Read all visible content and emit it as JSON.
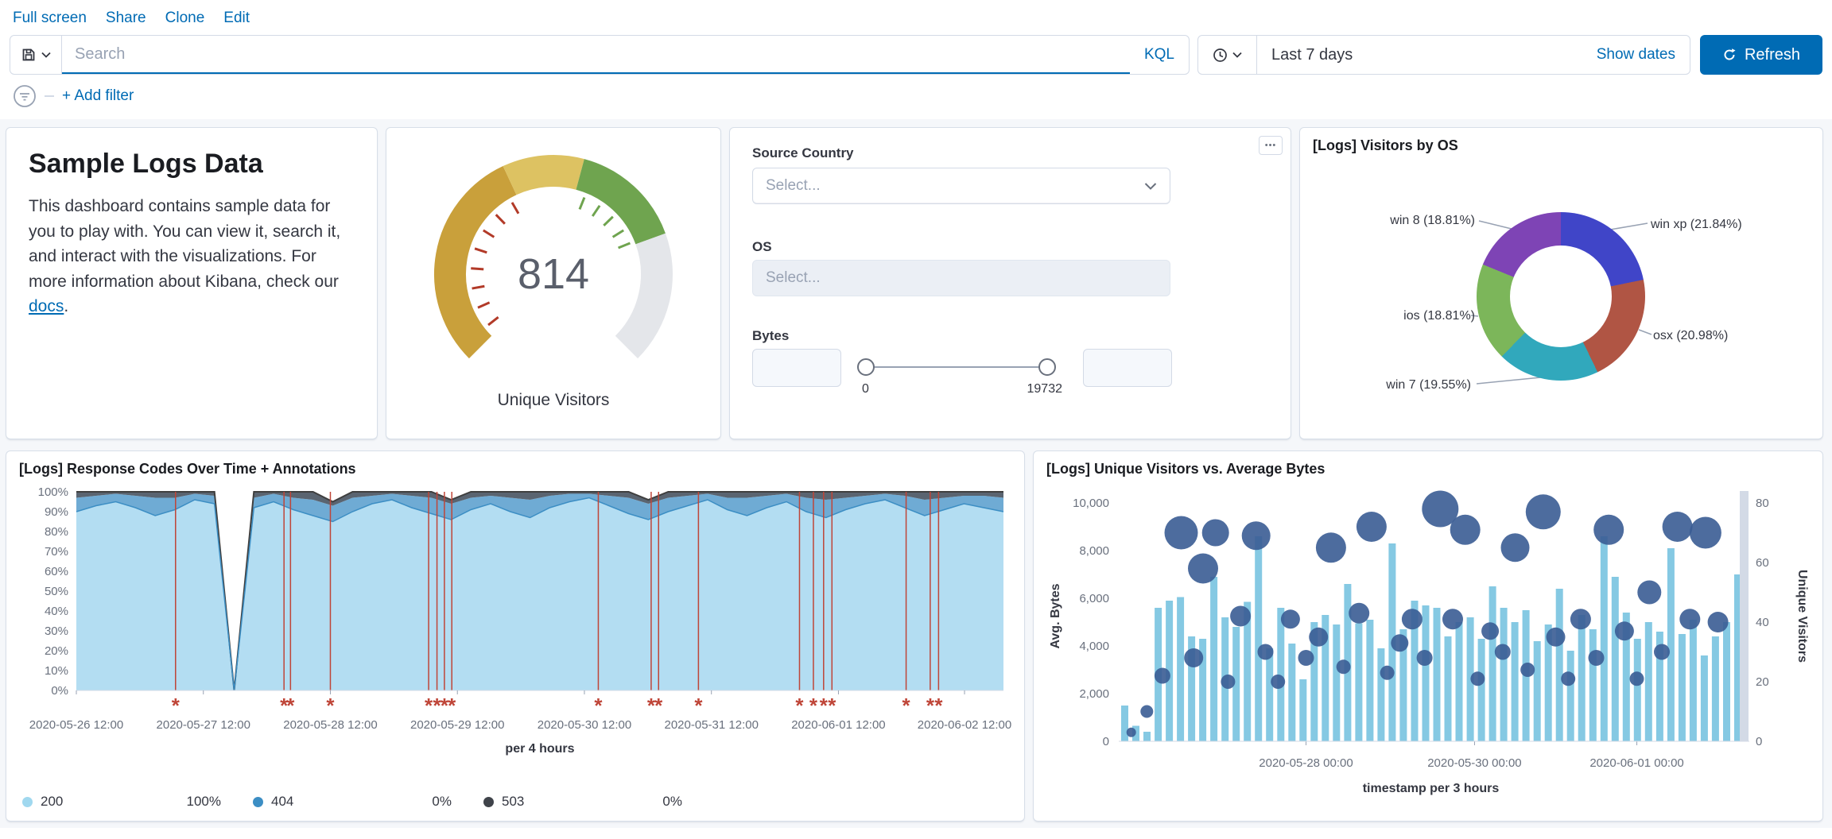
{
  "topnav": {
    "items": [
      "Full screen",
      "Share",
      "Clone",
      "Edit"
    ]
  },
  "query_bar": {
    "search_placeholder": "Search",
    "kql_label": "KQL"
  },
  "time_picker": {
    "range_label": "Last 7 days",
    "show_dates_label": "Show dates",
    "refresh_label": "Refresh"
  },
  "filter_bar": {
    "add_filter_label": "+ Add filter"
  },
  "markdown_panel": {
    "title": "Sample Logs Data",
    "body_1": "This dashboard contains sample data for you to play with. You can view it, search it, and interact with the visualizations. For more information about Kibana, check our ",
    "link_text": "docs",
    "body_2": "."
  },
  "controls_panel": {
    "source_country_label": "Source Country",
    "os_label": "OS",
    "bytes_label": "Bytes",
    "select_placeholder": "Select...",
    "bytes_min": "0",
    "bytes_max": "19732"
  },
  "colors": {
    "accent": "#006BB4",
    "panel_border": "#D3DAE6"
  },
  "chart_data": [
    {
      "id": "gauge",
      "type": "gauge",
      "title": "Unique Visitors",
      "value": "814",
      "segments": [
        {
          "from": -135,
          "to": -25,
          "color": "#C9A03B"
        },
        {
          "from": -25,
          "to": 15,
          "color": "#DDC262"
        },
        {
          "from": 15,
          "to": 70,
          "color": "#6FA44F"
        },
        {
          "from": 70,
          "to": 135,
          "color": "#E4E6EA"
        }
      ],
      "red_ticks": [
        -128,
        -114,
        -100,
        -86,
        -72,
        -58,
        -44,
        -30
      ],
      "green_ticks": [
        22,
        34,
        46,
        58,
        68
      ],
      "tick_colors": {
        "red": "#B23A28",
        "green": "#6FA44F"
      }
    },
    {
      "id": "visitors_by_os",
      "type": "pie",
      "title": "[Logs] Visitors by OS",
      "slices": [
        {
          "name": "win xp",
          "pct": 21.84,
          "color": "#4045C8",
          "label": "win xp (21.84%)"
        },
        {
          "name": "osx",
          "pct": 20.98,
          "color": "#B05544",
          "label": "osx (20.98%)"
        },
        {
          "name": "win 7",
          "pct": 19.55,
          "color": "#31A8BC",
          "label": "win 7 (19.55%)"
        },
        {
          "name": "ios",
          "pct": 18.81,
          "color": "#7CB65A",
          "label": "ios (18.81%)"
        },
        {
          "name": "win 8",
          "pct": 18.81,
          "color": "#7E44B5",
          "label": "win 8 (18.81%)"
        }
      ]
    },
    {
      "id": "response_codes",
      "type": "area",
      "title": "[Logs] Response Codes Over Time + Annotations",
      "xlabel": "per 4 hours",
      "ylim": [
        0,
        100
      ],
      "y_ticks": [
        "0%",
        "10%",
        "20%",
        "30%",
        "40%",
        "50%",
        "60%",
        "70%",
        "80%",
        "90%",
        "100%"
      ],
      "x_ticks": [
        {
          "label": "2020-05-26 12:00",
          "f": 0
        },
        {
          "label": "2020-05-27 12:00",
          "f": 0.137
        },
        {
          "label": "2020-05-28 12:00",
          "f": 0.274
        },
        {
          "label": "2020-05-29 12:00",
          "f": 0.411
        },
        {
          "label": "2020-05-30 12:00",
          "f": 0.548
        },
        {
          "label": "2020-05-31 12:00",
          "f": 0.685
        },
        {
          "label": "2020-06-01 12:00",
          "f": 0.822
        },
        {
          "label": "2020-06-02 12:00",
          "f": 0.958
        }
      ],
      "series": [
        {
          "name": "200",
          "color": "#B3DDF2",
          "values": [
            90,
            93,
            95,
            92,
            88,
            91,
            96,
            94,
            0,
            92,
            95,
            91,
            88,
            85,
            90,
            94,
            96,
            92,
            89,
            86,
            91,
            94,
            90,
            87,
            92,
            95,
            97,
            93,
            89,
            86,
            90,
            93,
            96,
            91,
            88,
            92,
            95,
            90,
            87,
            91,
            94,
            96,
            92,
            88,
            91,
            94,
            92,
            90
          ]
        },
        {
          "name": "404",
          "color": "#6FABD4",
          "values": [
            7,
            5,
            4,
            6,
            9,
            6,
            3,
            4,
            0,
            5,
            4,
            6,
            8,
            8,
            7,
            4,
            3,
            6,
            8,
            8,
            6,
            4,
            7,
            9,
            6,
            4,
            2,
            5,
            8,
            8,
            7,
            5,
            3,
            6,
            9,
            6,
            4,
            7,
            9,
            6,
            4,
            3,
            6,
            8,
            6,
            4,
            6,
            7
          ]
        },
        {
          "name": "503",
          "color": "#5A6470",
          "values": [
            3,
            2,
            1,
            2,
            3,
            3,
            1,
            2,
            0,
            3,
            1,
            3,
            4,
            2,
            3,
            2,
            1,
            2,
            3,
            2,
            3,
            2,
            3,
            4,
            2,
            1,
            1,
            2,
            3,
            2,
            3,
            2,
            1,
            3,
            3,
            2,
            1,
            3,
            4,
            3,
            2,
            1,
            2,
            4,
            3,
            2,
            2,
            3
          ]
        }
      ],
      "outline_color": "#3F3F3F",
      "boundary_color": "#3C8EC4",
      "annotations": {
        "color": "#BF4538",
        "fractions": [
          0.107,
          0.224,
          0.231,
          0.274,
          0.38,
          0.389,
          0.397,
          0.405,
          0.563,
          0.62,
          0.628,
          0.671,
          0.78,
          0.795,
          0.806,
          0.815,
          0.895,
          0.921,
          0.93
        ]
      },
      "legend": [
        {
          "name": "200",
          "dot": "#A0D8EF",
          "value": "100%"
        },
        {
          "name": "404",
          "dot": "#3C8EC4",
          "value": "0%"
        },
        {
          "name": "503",
          "dot": "#3F434A",
          "value": "0%"
        }
      ]
    },
    {
      "id": "visitors_vs_bytes",
      "type": "bar",
      "title": "[Logs] Unique Visitors vs. Average Bytes",
      "xlabel": "timestamp per 3 hours",
      "left_axis": {
        "title": "Avg. Bytes",
        "ticks": [
          "0",
          "2,000",
          "4,000",
          "6,000",
          "8,000",
          "10,000"
        ],
        "tick_step": 2000,
        "max": 10500
      },
      "right_axis": {
        "title": "Unique Visitors",
        "ticks": [
          "0",
          "20",
          "40",
          "60",
          "80"
        ],
        "tick_step": 20,
        "max": 84
      },
      "x_ticks": [
        {
          "label": "2020-05-28 00:00",
          "f": 0.3
        },
        {
          "label": "2020-05-30 00:00",
          "f": 0.57
        },
        {
          "label": "2020-06-01 00:00",
          "f": 0.83
        }
      ],
      "bar_color": "#85C9E3",
      "bars": [
        1500,
        650,
        400,
        5600,
        5900,
        6050,
        4400,
        4300,
        6900,
        5200,
        4800,
        5850,
        8600,
        3900,
        5600,
        4100,
        2600,
        5000,
        5300,
        4900,
        6600,
        4950,
        5100,
        3900,
        8300,
        4700,
        5900,
        5700,
        5600,
        4400,
        5000,
        5200,
        4300,
        6500,
        5600,
        5000,
        5500,
        4200,
        4900,
        6400,
        3800,
        5300,
        4700,
        8600,
        6900,
        5400,
        4300,
        5000,
        4600,
        8100,
        4500,
        5100,
        3600,
        4400,
        5000,
        7000
      ],
      "end_bar": {
        "color": "#D3DAE6"
      },
      "bubble_color": "#3A5C94",
      "bubbles": [
        {
          "x": 0.02,
          "v": 3,
          "r": 6
        },
        {
          "x": 0.045,
          "v": 10,
          "r": 8
        },
        {
          "x": 0.07,
          "v": 22,
          "r": 10
        },
        {
          "x": 0.1,
          "v": 70,
          "r": 21
        },
        {
          "x": 0.12,
          "v": 28,
          "r": 12
        },
        {
          "x": 0.135,
          "v": 58,
          "r": 19
        },
        {
          "x": 0.155,
          "v": 70,
          "r": 17
        },
        {
          "x": 0.175,
          "v": 20,
          "r": 9
        },
        {
          "x": 0.195,
          "v": 42,
          "r": 13
        },
        {
          "x": 0.22,
          "v": 69,
          "r": 18
        },
        {
          "x": 0.235,
          "v": 30,
          "r": 10
        },
        {
          "x": 0.255,
          "v": 20,
          "r": 9
        },
        {
          "x": 0.275,
          "v": 41,
          "r": 12
        },
        {
          "x": 0.3,
          "v": 28,
          "r": 10
        },
        {
          "x": 0.32,
          "v": 35,
          "r": 12
        },
        {
          "x": 0.34,
          "v": 65,
          "r": 19
        },
        {
          "x": 0.36,
          "v": 25,
          "r": 9
        },
        {
          "x": 0.385,
          "v": 43,
          "r": 13
        },
        {
          "x": 0.405,
          "v": 72,
          "r": 19
        },
        {
          "x": 0.43,
          "v": 23,
          "r": 9
        },
        {
          "x": 0.45,
          "v": 33,
          "r": 11
        },
        {
          "x": 0.47,
          "v": 41,
          "r": 13
        },
        {
          "x": 0.49,
          "v": 28,
          "r": 10
        },
        {
          "x": 0.515,
          "v": 78,
          "r": 23
        },
        {
          "x": 0.535,
          "v": 41,
          "r": 13
        },
        {
          "x": 0.555,
          "v": 71,
          "r": 19
        },
        {
          "x": 0.575,
          "v": 21,
          "r": 9
        },
        {
          "x": 0.595,
          "v": 37,
          "r": 11
        },
        {
          "x": 0.615,
          "v": 30,
          "r": 10
        },
        {
          "x": 0.635,
          "v": 65,
          "r": 18
        },
        {
          "x": 0.655,
          "v": 24,
          "r": 9
        },
        {
          "x": 0.68,
          "v": 77,
          "r": 22
        },
        {
          "x": 0.7,
          "v": 35,
          "r": 12
        },
        {
          "x": 0.72,
          "v": 21,
          "r": 9
        },
        {
          "x": 0.74,
          "v": 41,
          "r": 13
        },
        {
          "x": 0.765,
          "v": 28,
          "r": 10
        },
        {
          "x": 0.785,
          "v": 71,
          "r": 19
        },
        {
          "x": 0.81,
          "v": 37,
          "r": 12
        },
        {
          "x": 0.83,
          "v": 21,
          "r": 9
        },
        {
          "x": 0.85,
          "v": 50,
          "r": 15
        },
        {
          "x": 0.87,
          "v": 30,
          "r": 10
        },
        {
          "x": 0.895,
          "v": 72,
          "r": 19
        },
        {
          "x": 0.915,
          "v": 41,
          "r": 13
        },
        {
          "x": 0.94,
          "v": 70,
          "r": 20
        },
        {
          "x": 0.96,
          "v": 40,
          "r": 13
        }
      ]
    }
  ]
}
